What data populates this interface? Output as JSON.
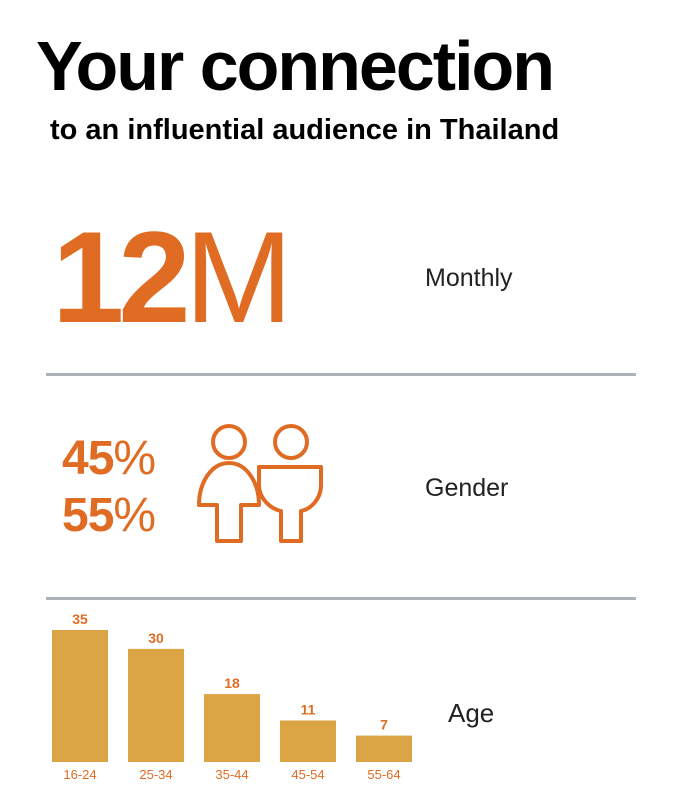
{
  "header": {
    "title": "Your connection",
    "subtitle": "to an influential audience in Thailand"
  },
  "monthly": {
    "number": "12",
    "suffix": "M",
    "label": "Monthly"
  },
  "gender": {
    "label": "Gender",
    "values": [
      {
        "number": "45",
        "sign": "%"
      },
      {
        "number": "55",
        "sign": "%"
      }
    ],
    "icons": [
      "female-person-icon",
      "male-person-icon"
    ]
  },
  "colors": {
    "accent": "#e06c23",
    "bar": "#dba444",
    "divider": "#a9b3b8"
  },
  "chart_data": {
    "type": "bar",
    "categories": [
      "16-24",
      "25-34",
      "35-44",
      "45-54",
      "55-64"
    ],
    "values": [
      35,
      30,
      18,
      11,
      7
    ],
    "title": "Age",
    "xlabel": "",
    "ylabel": "",
    "ylim": [
      0,
      35
    ],
    "grid": false,
    "data_labels": true
  }
}
